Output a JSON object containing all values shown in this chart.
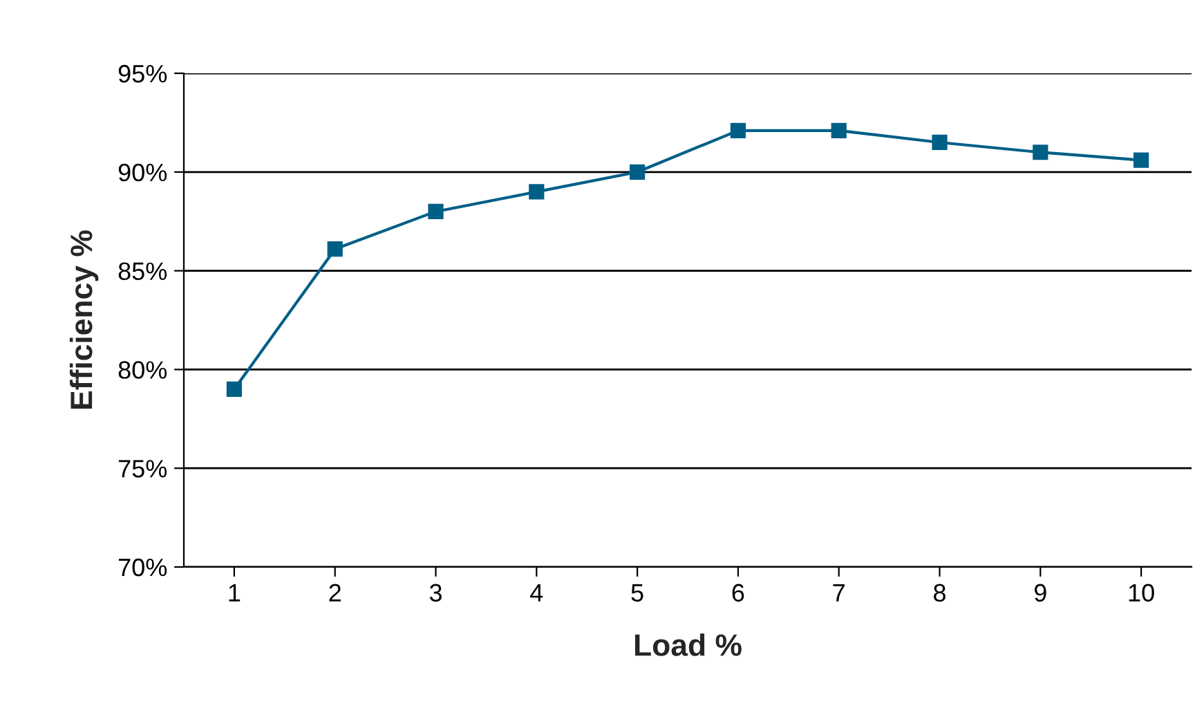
{
  "chart_data": {
    "type": "line",
    "xlabel": "Load %",
    "ylabel": "Efficiency %",
    "categories": [
      "1",
      "2",
      "3",
      "4",
      "5",
      "6",
      "7",
      "8",
      "9",
      "10"
    ],
    "series": [
      {
        "color": "#005f87",
        "values": [
          79.0,
          86.1,
          88.0,
          89.0,
          90.0,
          92.1,
          92.1,
          91.5,
          91.0,
          90.6
        ]
      }
    ],
    "ylim": [
      70,
      95
    ],
    "yticks": [
      {
        "value": 70,
        "label": "70%"
      },
      {
        "value": 75,
        "label": "75%"
      },
      {
        "value": 80,
        "label": "80%"
      },
      {
        "value": 85,
        "label": "85%"
      },
      {
        "value": 90,
        "label": "90%"
      },
      {
        "value": 95,
        "label": "95%"
      }
    ],
    "grid": "y",
    "marker": "square",
    "line_style": "solid"
  }
}
